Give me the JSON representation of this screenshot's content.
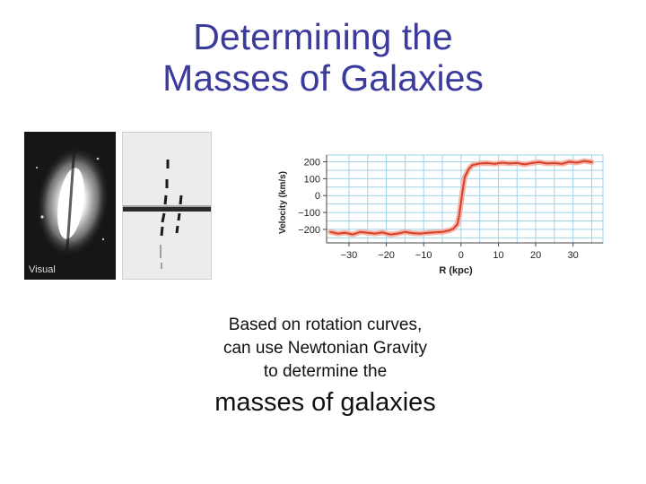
{
  "slide": {
    "title_line1": "Determining the",
    "title_line2": "Masses of Galaxies",
    "caption_line1": "Based on rotation curves,",
    "caption_line2": "can use Newtonian Gravity",
    "caption_line3": "to determine the",
    "caption_line4": "masses of galaxies"
  },
  "images": {
    "visual_label": "Visual"
  },
  "colors": {
    "title": "#3b3b9e",
    "curve": "#d9402a",
    "grid": "#9fd3ea"
  },
  "chart_data": {
    "type": "line",
    "xlabel": "R (kpc)",
    "ylabel": "Velocity (km/s)",
    "xlim": [
      -36,
      38
    ],
    "ylim": [
      -280,
      240
    ],
    "xticks": [
      -30,
      -20,
      -10,
      0,
      10,
      20,
      30
    ],
    "xtick_labels": [
      "−30",
      "−20",
      "−10",
      "0",
      "10",
      "20",
      "30"
    ],
    "yticks": [
      200,
      100,
      0,
      -100,
      -200
    ],
    "ytick_labels": [
      "200",
      "100",
      "0",
      "−100",
      "−200"
    ],
    "grid": true,
    "series": [
      {
        "x": [
          -35,
          -33,
          -31,
          -29,
          -27,
          -25,
          -23,
          -21,
          -19,
          -17,
          -15,
          -13,
          -11,
          -9,
          -7,
          -5,
          -3,
          -2,
          -1,
          -0.5,
          0,
          0.5,
          1,
          2,
          3,
          5,
          7,
          9,
          11,
          13,
          15,
          17,
          19,
          21,
          23,
          25,
          27,
          29,
          31,
          33,
          35
        ],
        "y": [
          -215,
          -225,
          -220,
          -230,
          -215,
          -220,
          -225,
          -218,
          -230,
          -225,
          -215,
          -222,
          -225,
          -220,
          -218,
          -215,
          -205,
          -195,
          -170,
          -120,
          -40,
          40,
          110,
          155,
          180,
          190,
          192,
          188,
          195,
          190,
          193,
          185,
          193,
          198,
          190,
          192,
          188,
          200,
          195,
          205,
          198
        ]
      }
    ]
  }
}
